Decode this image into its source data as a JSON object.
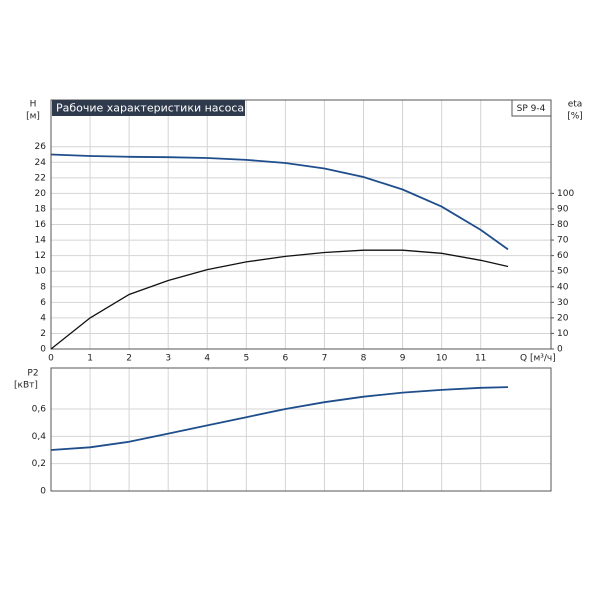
{
  "chart_data": [
    {
      "type": "line",
      "title": "Рабочие характеристики насоса",
      "model": "SP 9-4",
      "ylabel": "H",
      "yunit": "[м]",
      "y2label": "eta",
      "y2unit": "[%]",
      "xlabel": "Q [м³/ч]",
      "x": [
        0,
        1,
        2,
        3,
        4,
        5,
        6,
        7,
        8,
        9,
        10,
        11,
        11.7
      ],
      "series": [
        {
          "color": "#1f4e8c",
          "axis": "y",
          "values": [
            25.0,
            24.8,
            24.7,
            24.65,
            24.55,
            24.3,
            23.9,
            23.2,
            22.1,
            20.5,
            18.3,
            15.3,
            12.8
          ]
        },
        {
          "color": "#111111",
          "axis": "y2",
          "values": [
            0,
            20,
            35,
            44,
            51,
            56,
            59.5,
            62,
            63.5,
            63.5,
            61.5,
            57,
            53
          ]
        }
      ],
      "xlim": [
        0,
        12.8
      ],
      "xticks": [
        0,
        1,
        2,
        3,
        4,
        5,
        6,
        7,
        8,
        9,
        10,
        11
      ],
      "ylim": [
        0,
        32
      ],
      "yticks": [
        0,
        2,
        4,
        6,
        8,
        10,
        12,
        14,
        16,
        18,
        20,
        22,
        24,
        26
      ],
      "y2lim": [
        0,
        160
      ],
      "y2ticks": [
        0,
        10,
        20,
        30,
        40,
        50,
        60,
        70,
        80,
        90,
        100
      ],
      "grid": true
    },
    {
      "type": "line",
      "ylabel": "P2",
      "yunit": "[кВт]",
      "x": [
        0,
        1,
        2,
        3,
        4,
        5,
        6,
        7,
        8,
        9,
        10,
        11,
        11.7
      ],
      "series": [
        {
          "color": "#1f4e8c",
          "axis": "y",
          "values": [
            0.3,
            0.32,
            0.36,
            0.42,
            0.48,
            0.54,
            0.6,
            0.65,
            0.69,
            0.72,
            0.74,
            0.755,
            0.76
          ]
        }
      ],
      "xlim": [
        0,
        12.8
      ],
      "ylim": [
        0,
        0.9
      ],
      "yticks": [
        {
          "value": 0,
          "label": "0"
        },
        {
          "value": 0.2,
          "label": "0,2"
        },
        {
          "value": 0.4,
          "label": "0,4"
        },
        {
          "value": 0.6,
          "label": "0,6"
        }
      ],
      "grid": true
    }
  ]
}
